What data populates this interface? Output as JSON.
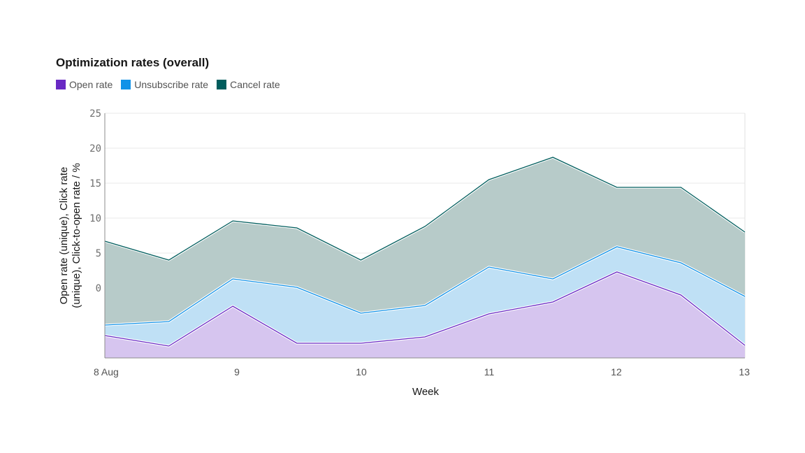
{
  "chart_data": {
    "type": "area",
    "stacked": true,
    "title": "Optimization rates (overall)",
    "xlabel": "Week",
    "ylabel_lines": [
      "Open rate (unique), Click rate",
      "(unique), Click-to-open rate / %"
    ],
    "ylim": [
      -10,
      25
    ],
    "yticks": [
      0,
      5,
      10,
      15,
      20,
      25
    ],
    "xtick_labels": [
      "8 Aug",
      "9",
      "10",
      "11",
      "12",
      "13"
    ],
    "x": [
      "8 Aug 00:00",
      "8 Aug 12:00",
      "9 Aug 00:00",
      "9 Aug 12:00",
      "10 Aug 00:00",
      "10 Aug 12:00",
      "11 Aug 00:00",
      "11 Aug 12:00",
      "12 Aug 00:00",
      "12 Aug 12:00",
      "13 Aug 00:00"
    ],
    "grid": true,
    "legend": "top-left",
    "series": [
      {
        "name": "Open rate",
        "color": "#6929c4",
        "fill": "#d6c5ef",
        "values": [
          -6.8,
          -8.3,
          -2.6,
          -7.9,
          -7.9,
          -7.0,
          -3.7,
          -2.0,
          2.3,
          -1.0,
          -8.2
        ]
      },
      {
        "name": "Unsubscribe rate",
        "color": "#1192e8",
        "fill": "#bfe0f5",
        "values": [
          -5.3,
          -4.8,
          1.3,
          0.1,
          -3.6,
          -2.5,
          3.0,
          1.3,
          5.9,
          3.6,
          -1.2
        ]
      },
      {
        "name": "Cancel rate",
        "color": "#005d5d",
        "fill": "#b7cbc9",
        "values": [
          6.7,
          4.0,
          9.6,
          8.6,
          4.0,
          8.8,
          15.5,
          18.7,
          14.4,
          14.4,
          8.0
        ]
      }
    ]
  }
}
